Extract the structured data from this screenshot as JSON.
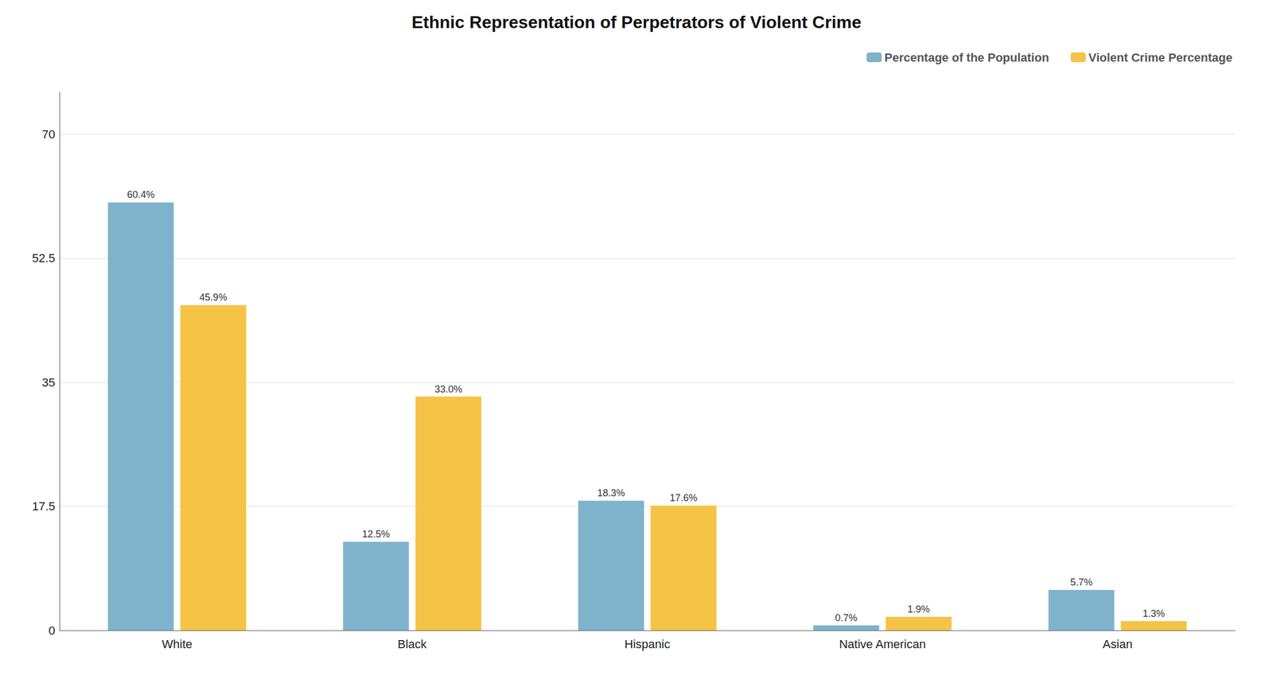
{
  "chart_data": {
    "type": "bar",
    "title": "Ethnic Representation of Perpetrators of Violent Crime",
    "categories": [
      "White",
      "Black",
      "Hispanic",
      "Native American",
      "Asian"
    ],
    "series": [
      {
        "name": "Percentage of the Population",
        "color": "#7FB3CC",
        "values": [
          60.4,
          12.5,
          18.3,
          0.7,
          5.7
        ],
        "value_labels": [
          "60.4%",
          "12.5%",
          "18.3%",
          "0.7%",
          "5.7%"
        ]
      },
      {
        "name": "Violent Crime Percentage",
        "color": "#F5C345",
        "values": [
          45.9,
          33.0,
          17.6,
          1.9,
          1.3
        ],
        "value_labels": [
          "45.9%",
          "33.0%",
          "17.6%",
          "1.9%",
          "1.3%"
        ]
      }
    ],
    "ylim": [
      0,
      76
    ],
    "yticks": [
      0,
      17.5,
      35,
      52.5,
      70
    ],
    "grid": true,
    "legend": "upper right",
    "data_labels": true
  }
}
